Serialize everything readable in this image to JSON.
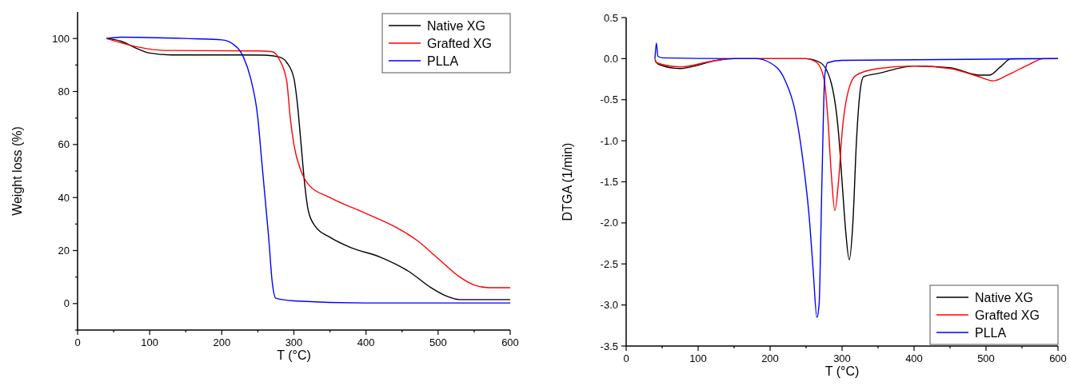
{
  "chart_data": [
    {
      "type": "line",
      "xlabel": "T (°C)",
      "ylabel": "Weight loss (%)",
      "xlim": [
        0,
        600
      ],
      "ylim": [
        -10,
        110
      ],
      "xticks": [
        0,
        {
          "value": 50,
          "label": null
        },
        100,
        {
          "value": 150,
          "label": null
        },
        200,
        {
          "value": 250,
          "label": null
        },
        300,
        {
          "value": 350,
          "label": null
        },
        400,
        {
          "value": 450,
          "label": null
        },
        500,
        {
          "value": 550,
          "label": null
        },
        600
      ],
      "yticks": [
        {
          "value": -10,
          "label": null
        },
        0,
        {
          "value": 10,
          "label": null
        },
        20,
        {
          "value": 30,
          "label": null
        },
        40,
        {
          "value": 50,
          "label": null
        },
        60,
        {
          "value": 70,
          "label": null
        },
        80,
        {
          "value": 90,
          "label": null
        },
        100
      ],
      "legend": "top right",
      "grid": false,
      "line_style": "solid",
      "series": [
        {
          "name": "Native XG",
          "color": "#000000",
          "x": [
            40,
            60,
            80,
            100,
            130,
            200,
            260,
            280,
            290,
            300,
            305,
            310,
            315,
            320,
            330,
            350,
            380,
            420,
            460,
            490,
            510,
            530,
            600
          ],
          "values": [
            100,
            99,
            96.5,
            94.5,
            93.8,
            93.8,
            93.7,
            93,
            91,
            85,
            75,
            60,
            45,
            35,
            29,
            25,
            21,
            17.5,
            12,
            6,
            3,
            1.5,
            1.5
          ]
        },
        {
          "name": "Grafted XG",
          "color": "#ff0000",
          "x": [
            40,
            80,
            120,
            250,
            270,
            280,
            290,
            295,
            300,
            310,
            320,
            350,
            400,
            440,
            470,
            500,
            530,
            550,
            570,
            600
          ],
          "values": [
            100,
            97,
            95.5,
            95.3,
            95,
            92,
            84,
            70,
            60,
            50,
            45,
            40,
            34,
            29,
            24,
            17,
            10,
            7,
            6,
            6
          ]
        },
        {
          "name": "PLLA",
          "color": "#0000ff",
          "x": [
            40,
            60,
            150,
            200,
            215,
            230,
            240,
            250,
            255,
            260,
            265,
            270,
            275,
            300,
            400,
            600
          ],
          "values": [
            100,
            100.5,
            100,
            99.5,
            98,
            93,
            85,
            70,
            55,
            40,
            25,
            8,
            2,
            1,
            0.2,
            0.2
          ]
        }
      ]
    },
    {
      "type": "line",
      "xlabel": "T (°C)",
      "ylabel": "DTGA (1/min)",
      "xlim": [
        0,
        600
      ],
      "ylim": [
        -3.5,
        0.5
      ],
      "xticks": [
        0,
        {
          "value": 50,
          "label": null
        },
        100,
        {
          "value": 150,
          "label": null
        },
        200,
        {
          "value": 250,
          "label": null
        },
        300,
        {
          "value": 350,
          "label": null
        },
        400,
        {
          "value": 450,
          "label": null
        },
        500,
        {
          "value": 550,
          "label": null
        },
        600
      ],
      "yticks": [
        {
          "value": -3.5,
          "label": "-3.5"
        },
        {
          "value": -3.0,
          "label": "-3.0"
        },
        {
          "value": -2.5,
          "label": "-2.5"
        },
        {
          "value": -2.0,
          "label": "-2.0"
        },
        {
          "value": -1.5,
          "label": "-1.5"
        },
        {
          "value": -1.0,
          "label": "-1.0"
        },
        {
          "value": -0.5,
          "label": "-0.5"
        },
        {
          "value": 0,
          "label": "0.0"
        },
        {
          "value": 0.5,
          "label": "0.5"
        }
      ],
      "legend": "bottom right",
      "grid": false,
      "line_style": "solid",
      "series": [
        {
          "name": "Native XG",
          "color": "#000000",
          "x": [
            40,
            45,
            75,
            100,
            120,
            150,
            250,
            270,
            285,
            295,
            300,
            305,
            310,
            315,
            320,
            325,
            330,
            350,
            400,
            450,
            490,
            505,
            520,
            535,
            600
          ],
          "values": [
            -0.02,
            -0.07,
            -0.12,
            -0.08,
            -0.03,
            0,
            0,
            -0.05,
            -0.3,
            -0.9,
            -1.5,
            -2.1,
            -2.45,
            -2.0,
            -1.0,
            -0.4,
            -0.22,
            -0.18,
            -0.09,
            -0.11,
            -0.2,
            -0.2,
            -0.1,
            0,
            0
          ]
        },
        {
          "name": "Grafted XG",
          "color": "#ff0000",
          "x": [
            40,
            42,
            75,
            120,
            150,
            250,
            265,
            275,
            280,
            285,
            290,
            295,
            300,
            310,
            320,
            350,
            400,
            450,
            490,
            510,
            530,
            560,
            580,
            600
          ],
          "values": [
            0,
            -0.05,
            -0.1,
            -0.03,
            0,
            0,
            -0.05,
            -0.25,
            -0.7,
            -1.4,
            -1.85,
            -1.5,
            -0.9,
            -0.35,
            -0.2,
            -0.12,
            -0.09,
            -0.12,
            -0.22,
            -0.27,
            -0.2,
            -0.07,
            0,
            0
          ]
        },
        {
          "name": "PLLA",
          "color": "#0000ff",
          "x": [
            40,
            42,
            44,
            50,
            150,
            180,
            200,
            220,
            235,
            245,
            255,
            260,
            265,
            268,
            272,
            276,
            280,
            300,
            600
          ],
          "values": [
            0,
            0.19,
            0.03,
            0.01,
            0,
            0,
            -0.05,
            -0.25,
            -0.65,
            -1.2,
            -2.0,
            -2.6,
            -3.15,
            -3.0,
            -1.5,
            -0.2,
            -0.05,
            -0.02,
            0
          ]
        }
      ]
    }
  ]
}
